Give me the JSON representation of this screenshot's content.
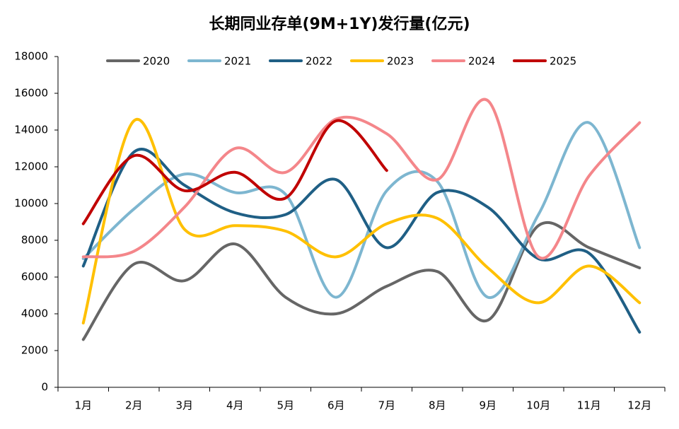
{
  "chart_data": {
    "type": "line",
    "title": "长期同业存单(9M+1Y)发行量(亿元)",
    "categories": [
      "1月",
      "2月",
      "3月",
      "4月",
      "5月",
      "6月",
      "7月",
      "8月",
      "9月",
      "10月",
      "11月",
      "12月"
    ],
    "series": [
      {
        "name": "2020",
        "color": "#666666",
        "values": [
          2600,
          6700,
          5800,
          7800,
          4900,
          4000,
          5500,
          6300,
          3650,
          8800,
          7600,
          6500
        ]
      },
      {
        "name": "2021",
        "color": "#7db6d0",
        "values": [
          7000,
          9700,
          11600,
          10600,
          10500,
          4900,
          10700,
          11200,
          4900,
          9400,
          14400,
          7600
        ]
      },
      {
        "name": "2022",
        "color": "#1f5f85",
        "values": [
          6600,
          12800,
          11000,
          9500,
          9400,
          11300,
          7600,
          10600,
          9800,
          7000,
          7300,
          3000
        ]
      },
      {
        "name": "2023",
        "color": "#ffc000",
        "values": [
          3500,
          14500,
          8600,
          8800,
          8500,
          7100,
          8900,
          9200,
          6500,
          4600,
          6600,
          4600
        ]
      },
      {
        "name": "2024",
        "color": "#f4868a",
        "values": [
          7100,
          7400,
          9800,
          13000,
          11700,
          14600,
          13800,
          11300,
          15600,
          7100,
          11500,
          14400
        ]
      },
      {
        "name": "2025",
        "color": "#c00000",
        "values": [
          8900,
          12600,
          10700,
          11700,
          10300,
          14500,
          11800,
          null,
          null,
          null,
          null,
          null
        ]
      }
    ],
    "ylim": [
      0,
      18000
    ],
    "yticks": [
      0,
      2000,
      4000,
      6000,
      8000,
      10000,
      12000,
      14000,
      16000,
      18000
    ],
    "grid": false
  }
}
